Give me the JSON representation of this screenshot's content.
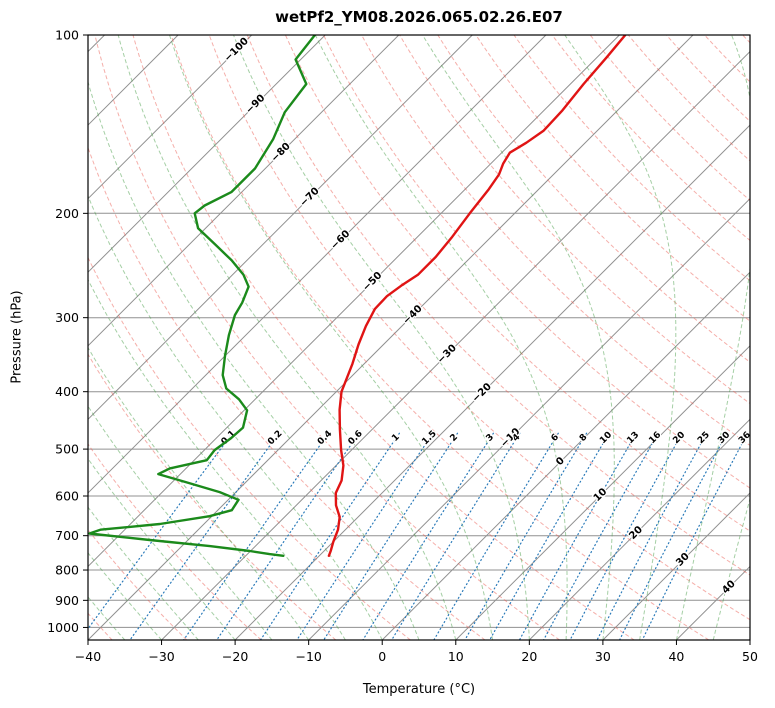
{
  "chart_data": {
    "type": "line",
    "diagram": "skew-T log-p sounding",
    "title": "wetPf2_YM08.2026.065.02.26.E07",
    "xlabel": "Temperature (°C)",
    "ylabel": "Pressure (hPa)",
    "x_range": [
      -40,
      50
    ],
    "pressure_range": [
      100,
      1050
    ],
    "x_ticks": [
      -40,
      -30,
      -20,
      -10,
      0,
      10,
      20,
      30,
      40,
      50
    ],
    "pressure_ticks": [
      100,
      200,
      300,
      400,
      500,
      600,
      700,
      800,
      900,
      1000
    ],
    "skew_degrees": 45,
    "grid": true,
    "series": [
      {
        "name": "temperature",
        "color": "#e01414",
        "points_p_t": [
          [
            100,
            -49.2
          ],
          [
            109,
            -48.7
          ],
          [
            121,
            -48.2
          ],
          [
            134,
            -47.5
          ],
          [
            145,
            -47.3
          ],
          [
            152,
            -48.0
          ],
          [
            158,
            -48.9
          ],
          [
            165,
            -48.3
          ],
          [
            172,
            -47.4
          ],
          [
            182,
            -46.8
          ],
          [
            200,
            -46.1
          ],
          [
            219,
            -45.3
          ],
          [
            237,
            -44.8
          ],
          [
            254,
            -44.8
          ],
          [
            265,
            -45.6
          ],
          [
            276,
            -46.1
          ],
          [
            290,
            -46.0
          ],
          [
            310,
            -44.9
          ],
          [
            333,
            -43.4
          ],
          [
            359,
            -41.6
          ],
          [
            400,
            -39.3
          ],
          [
            429,
            -37.1
          ],
          [
            463,
            -34.4
          ],
          [
            502,
            -31.4
          ],
          [
            533,
            -29.0
          ],
          [
            565,
            -27.2
          ],
          [
            593,
            -26.3
          ],
          [
            622,
            -24.6
          ],
          [
            651,
            -22.5
          ],
          [
            684,
            -21.0
          ],
          [
            717,
            -20.0
          ],
          [
            743,
            -19.1
          ],
          [
            757,
            -18.7
          ]
        ]
      },
      {
        "name": "dewpoint",
        "color": "#1b8a1b",
        "points_p_t": [
          [
            100,
            -91.4
          ],
          [
            110,
            -90.7
          ],
          [
            121,
            -85.9
          ],
          [
            135,
            -85.0
          ],
          [
            150,
            -82.9
          ],
          [
            168,
            -81.4
          ],
          [
            184,
            -81.4
          ],
          [
            194,
            -83.2
          ],
          [
            200,
            -83.5
          ],
          [
            212,
            -81.0
          ],
          [
            226,
            -76.4
          ],
          [
            240,
            -72.1
          ],
          [
            254,
            -68.5
          ],
          [
            266,
            -66.2
          ],
          [
            283,
            -64.9
          ],
          [
            297,
            -64.2
          ],
          [
            321,
            -62.3
          ],
          [
            348,
            -60.0
          ],
          [
            375,
            -57.7
          ],
          [
            395,
            -55.4
          ],
          [
            412,
            -52.2
          ],
          [
            430,
            -49.6
          ],
          [
            460,
            -47.8
          ],
          [
            479,
            -48.0
          ],
          [
            502,
            -48.6
          ],
          [
            522,
            -48.3
          ],
          [
            539,
            -52.2
          ],
          [
            551,
            -53.0
          ],
          [
            568,
            -48.3
          ],
          [
            591,
            -42.2
          ],
          [
            609,
            -38.6
          ],
          [
            634,
            -38.1
          ],
          [
            649,
            -40.3
          ],
          [
            669,
            -46.0
          ],
          [
            684,
            -53.3
          ],
          [
            694,
            -54.3
          ],
          [
            712,
            -45.2
          ],
          [
            729,
            -36.2
          ],
          [
            743,
            -30.1
          ],
          [
            752,
            -27.0
          ],
          [
            757,
            -24.9
          ]
        ]
      }
    ],
    "background": {
      "isobars": {
        "values": [
          100,
          200,
          300,
          400,
          500,
          600,
          700,
          800,
          900,
          1000
        ],
        "color": "#909090"
      },
      "isotherms": {
        "min": -150,
        "max": 50,
        "step": 10,
        "color": "#909090"
      },
      "dry_adiabats": {
        "theta_min": -40,
        "theta_max": 200,
        "step": 10,
        "color": "rgba(235,95,85,0.5)"
      },
      "moist_adiabats": {
        "t0_min": -45,
        "t0_max": 45,
        "step": 5,
        "color": "rgba(75,160,75,0.5)"
      },
      "mixing_ratio": {
        "values": [
          0.1,
          0.2,
          0.4,
          0.6,
          1,
          1.5,
          2,
          3,
          4,
          6,
          8,
          10,
          13,
          16,
          20,
          25,
          30,
          36
        ],
        "label_pressure": 479,
        "p_top_extent": 470,
        "color": "#2a7ab9"
      }
    },
    "line_labels": {
      "isotherm_labels": [
        {
          "t": -100,
          "p": 106
        },
        {
          "t": -90,
          "p": 131
        },
        {
          "t": -80,
          "p": 158
        },
        {
          "t": -70,
          "p": 188
        },
        {
          "t": -60,
          "p": 222
        },
        {
          "t": -50,
          "p": 261
        },
        {
          "t": -40,
          "p": 297
        },
        {
          "t": -30,
          "p": 346
        },
        {
          "t": -20,
          "p": 402
        },
        {
          "t": -10,
          "p": 479
        },
        {
          "t": 0,
          "p": 525
        },
        {
          "t": 10,
          "p": 598
        },
        {
          "t": 20,
          "p": 693
        },
        {
          "t": 30,
          "p": 769
        },
        {
          "t": 40,
          "p": 856
        }
      ],
      "colors": {
        "negative": "#1f77b4",
        "zero": "#666666",
        "positive": "#cf3f3f"
      }
    }
  }
}
